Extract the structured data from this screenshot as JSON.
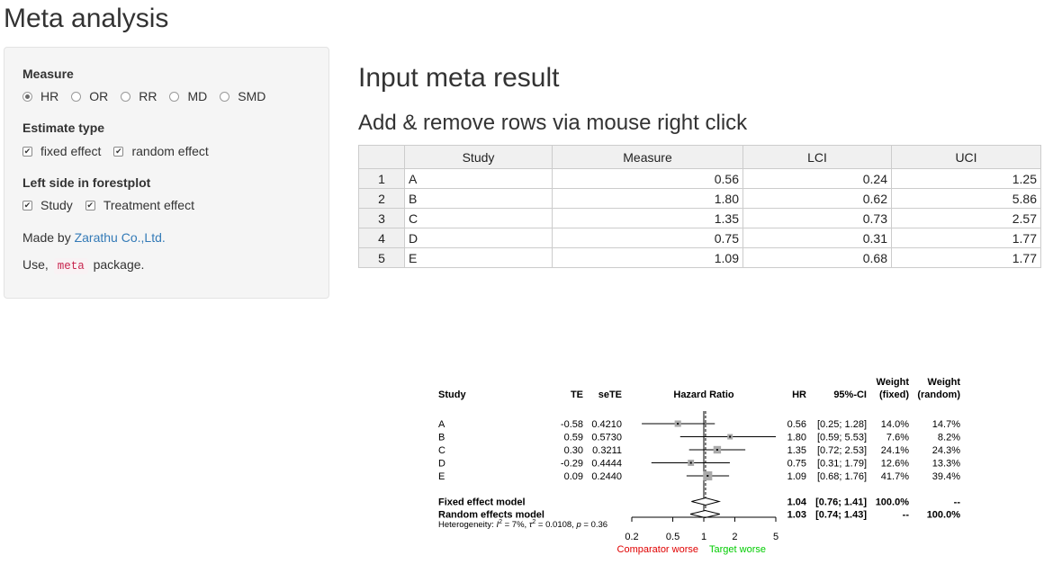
{
  "page": {
    "title": "Meta analysis"
  },
  "sidebar": {
    "measure": {
      "label": "Measure",
      "options": [
        "HR",
        "OR",
        "RR",
        "MD",
        "SMD"
      ],
      "selected": "HR"
    },
    "estimate": {
      "label": "Estimate type",
      "options": [
        {
          "label": "fixed effect",
          "checked": true
        },
        {
          "label": "random effect",
          "checked": true
        }
      ]
    },
    "left_side": {
      "label": "Left side in forestplot",
      "options": [
        {
          "label": "Study",
          "checked": true
        },
        {
          "label": "Treatment effect",
          "checked": true
        }
      ]
    },
    "made_by": {
      "prefix": "Made by",
      "link": "Zarathu Co.,Ltd."
    },
    "use": {
      "prefix": "Use,",
      "code": "meta",
      "suffix": "package."
    }
  },
  "main": {
    "title": "Input meta result",
    "subtitle": "Add & remove rows via mouse right click",
    "table": {
      "headers": [
        "",
        "Study",
        "Measure",
        "LCI",
        "UCI"
      ],
      "rows": [
        {
          "n": "1",
          "study": "A",
          "measure": "0.56",
          "lci": "0.24",
          "uci": "1.25"
        },
        {
          "n": "2",
          "study": "B",
          "measure": "1.80",
          "lci": "0.62",
          "uci": "5.86"
        },
        {
          "n": "3",
          "study": "C",
          "measure": "1.35",
          "lci": "0.73",
          "uci": "2.57"
        },
        {
          "n": "4",
          "study": "D",
          "measure": "0.75",
          "lci": "0.31",
          "uci": "1.77"
        },
        {
          "n": "5",
          "study": "E",
          "measure": "1.09",
          "lci": "0.68",
          "uci": "1.77"
        }
      ]
    }
  },
  "forest": {
    "headers": {
      "study": "Study",
      "te": "TE",
      "sete": "seTE",
      "plot": "Hazard Ratio",
      "hr": "HR",
      "ci": "95%-CI",
      "w_fixed": [
        "Weight",
        "(fixed)"
      ],
      "w_random": [
        "Weight",
        "(random)"
      ]
    },
    "studies": [
      {
        "name": "A",
        "te": "-0.58",
        "sete": "0.4210",
        "hr": "0.56",
        "ci": "[0.25; 1.28]",
        "w_fixed": "14.0%",
        "w_random": "14.7%",
        "est": 0.56,
        "lo": 0.25,
        "hi": 1.28,
        "wt": 14.0
      },
      {
        "name": "B",
        "te": "0.59",
        "sete": "0.5730",
        "hr": "1.80",
        "ci": "[0.59; 5.53]",
        "w_fixed": "7.6%",
        "w_random": "8.2%",
        "est": 1.8,
        "lo": 0.59,
        "hi": 5.53,
        "wt": 7.6
      },
      {
        "name": "C",
        "te": "0.30",
        "sete": "0.3211",
        "hr": "1.35",
        "ci": "[0.72; 2.53]",
        "w_fixed": "24.1%",
        "w_random": "24.3%",
        "est": 1.35,
        "lo": 0.72,
        "hi": 2.53,
        "wt": 24.1
      },
      {
        "name": "D",
        "te": "-0.29",
        "sete": "0.4444",
        "hr": "0.75",
        "ci": "[0.31; 1.79]",
        "w_fixed": "12.6%",
        "w_random": "13.3%",
        "est": 0.75,
        "lo": 0.31,
        "hi": 1.79,
        "wt": 12.6
      },
      {
        "name": "E",
        "te": "0.09",
        "sete": "0.2440",
        "hr": "1.09",
        "ci": "[0.68; 1.76]",
        "w_fixed": "41.7%",
        "w_random": "39.4%",
        "est": 1.09,
        "lo": 0.68,
        "hi": 1.76,
        "wt": 41.7
      }
    ],
    "pooled": [
      {
        "name": "Fixed effect model",
        "hr": "1.04",
        "ci": "[0.76; 1.41]",
        "w_fixed": "100.0%",
        "w_random": "--",
        "est": 1.04,
        "lo": 0.76,
        "hi": 1.41
      },
      {
        "name": "Random effects model",
        "hr": "1.03",
        "ci": "[0.74; 1.43]",
        "w_fixed": "--",
        "w_random": "100.0%",
        "est": 1.03,
        "lo": 0.74,
        "hi": 1.43
      }
    ],
    "heterogeneity": {
      "prefix": "Heterogeneity: ",
      "i2_label": "I",
      "i2_value": " = 7%, ",
      "tau2_label": "τ",
      "tau2_value": " = 0.0108, ",
      "p_label": "p",
      "p_value": " = 0.36"
    },
    "axis": {
      "ticks": [
        0.2,
        0.5,
        1,
        2,
        5
      ],
      "tick_labels": [
        "0.2",
        "0.5",
        "1",
        "2",
        "5"
      ],
      "scale": "log",
      "range": [
        0.2,
        5
      ]
    },
    "left_label": "Comparator worse",
    "right_label": "Target worse",
    "colors": {
      "left_label": "#e00000",
      "right_label": "#00cc00",
      "box": "#aaaaaa"
    }
  }
}
